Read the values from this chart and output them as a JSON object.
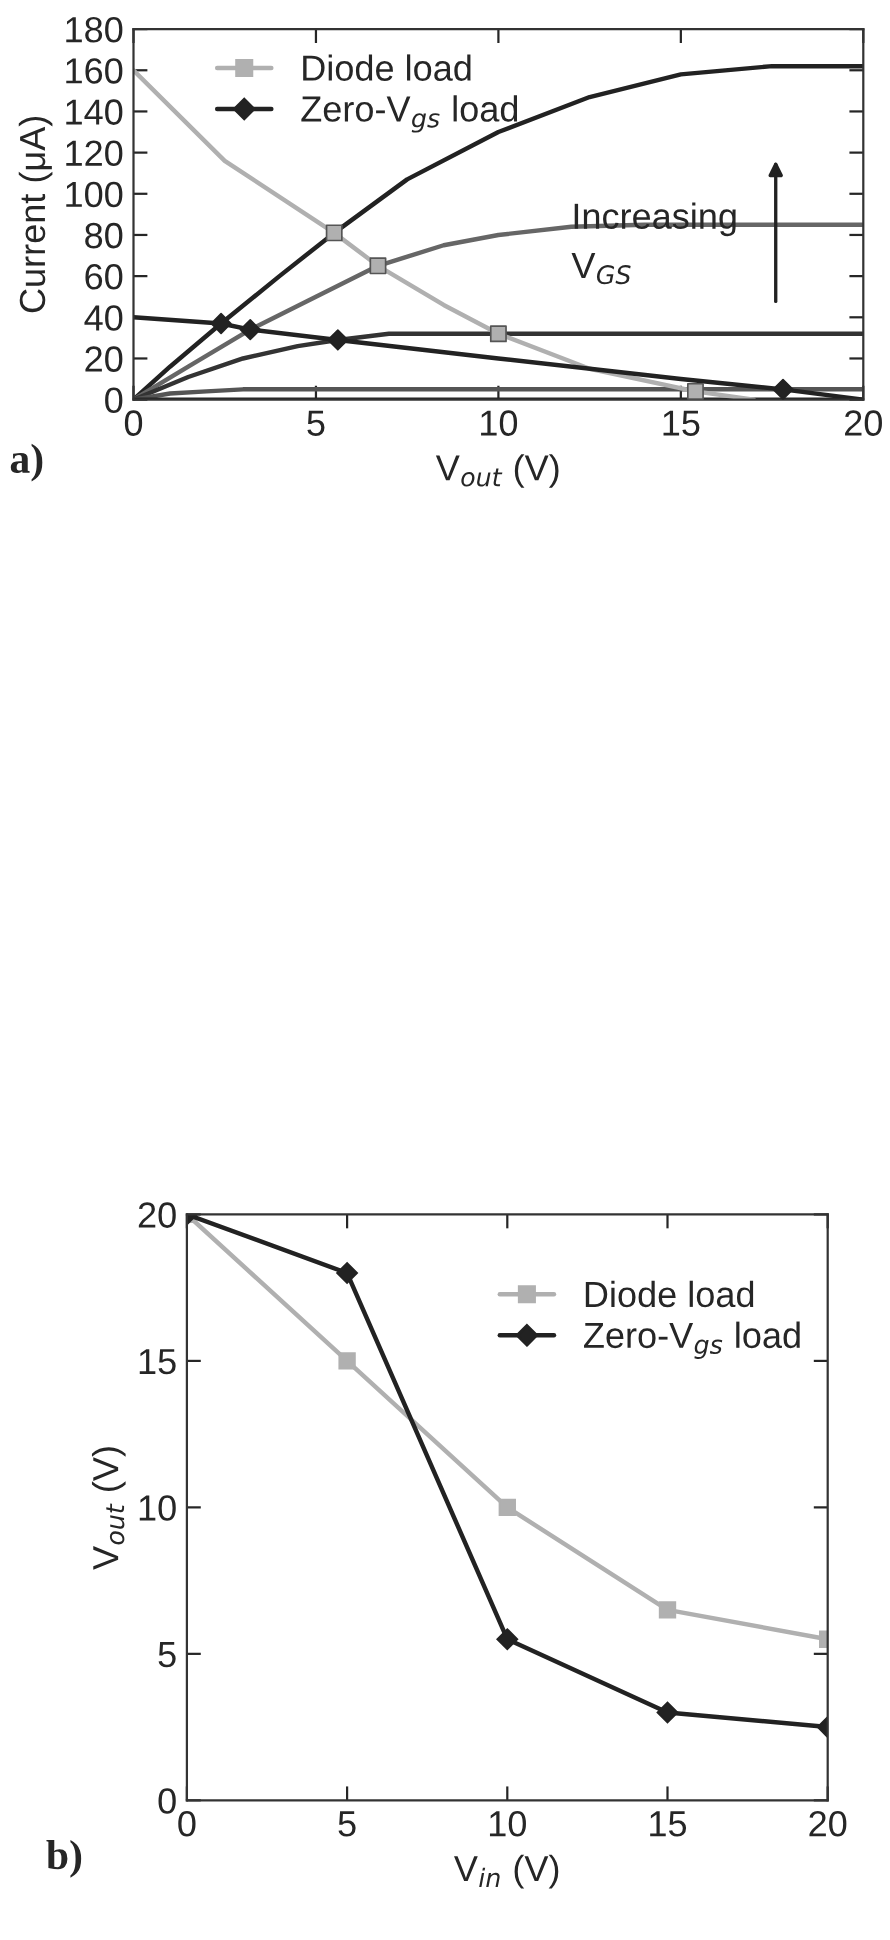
{
  "chart_data": [
    {
      "type": "line",
      "xlabel": "V$_{out}$ (V)",
      "ylabel": "Current (μA)",
      "xlim": [
        0,
        20
      ],
      "xticks": [
        0,
        5,
        10,
        15,
        20
      ],
      "ylim": [
        0,
        180
      ],
      "yticks": [
        0,
        20,
        40,
        60,
        80,
        100,
        120,
        140,
        160,
        180
      ],
      "grid": false,
      "legend": "top left",
      "annotations": [
        "a)",
        "Increasing\nV$_{GS}$"
      ],
      "series": [
        {
          "type": "line",
          "color": "#222222",
          "x": [
            0,
            1,
            2.4,
            4,
            5.5,
            7.5,
            10,
            12.5,
            15,
            17.5,
            20
          ],
          "values": [
            0,
            16,
            37,
            60,
            81,
            107,
            130,
            147,
            158,
            162,
            162
          ]
        },
        {
          "type": "line",
          "color": "#666666",
          "x": [
            0,
            1.5,
            3.2,
            5,
            6.7,
            8.5,
            10,
            12,
            14,
            20
          ],
          "values": [
            0,
            16,
            34,
            50,
            65,
            75,
            80,
            84,
            85,
            85
          ]
        },
        {
          "type": "line",
          "color": "#333333",
          "x": [
            0,
            1.5,
            3,
            4.5,
            5.6,
            7,
            8,
            20
          ],
          "values": [
            0,
            11,
            20,
            26,
            29,
            32,
            32,
            32
          ]
        },
        {
          "type": "line",
          "color": "#555555",
          "x": [
            0,
            1,
            2,
            3,
            20
          ],
          "values": [
            0,
            3,
            4,
            5,
            5
          ]
        },
        {
          "type": "line",
          "color": "#222222",
          "x": [
            0,
            20
          ],
          "values": [
            0,
            0
          ]
        },
        {
          "type": "line",
          "color": "#b0b0b0",
          "x": [
            0,
            2.5,
            5.5,
            6.7,
            8.5,
            10,
            12.5,
            15.4,
            17
          ],
          "values": [
            160,
            116,
            81,
            65,
            46,
            32,
            15,
            4,
            0
          ]
        },
        {
          "type": "line",
          "color": "#222222",
          "x": [
            0,
            2.4,
            3.2,
            5.6,
            10,
            15,
            17.8,
            20
          ],
          "values": [
            40,
            37,
            34,
            29,
            20,
            10,
            5,
            0
          ]
        },
        {
          "type": "scatter",
          "name": "Diode load",
          "color": "#b0b0b0",
          "marker": "square",
          "x": [
            5.5,
            6.7,
            10,
            15.4
          ],
          "values": [
            81,
            65,
            32,
            4
          ]
        },
        {
          "type": "scatter",
          "name": "Zero-V$_{gs}$ load",
          "color": "#222222",
          "marker": "diamond",
          "x": [
            2.4,
            3.2,
            5.6,
            17.8
          ],
          "values": [
            37,
            34,
            29,
            5
          ]
        }
      ]
    },
    {
      "type": "line",
      "xlabel": "V$_{in}$ (V)",
      "ylabel": "V$_{out}$ (V)",
      "xlim": [
        0,
        20
      ],
      "xticks": [
        0,
        5,
        10,
        15,
        20
      ],
      "ylim": [
        0,
        20
      ],
      "yticks": [
        0,
        5,
        10,
        15,
        20
      ],
      "grid": false,
      "legend": "top right",
      "annotations": [
        "b)"
      ],
      "series": [
        {
          "type": "line",
          "name": "Diode load",
          "color": "#b0b0b0",
          "marker": "square",
          "x": [
            0,
            5,
            10,
            15,
            20
          ],
          "values": [
            20,
            15,
            10,
            6.5,
            5.5
          ]
        },
        {
          "type": "line",
          "name": "Zero-V$_{gs}$ load",
          "color": "#222222",
          "marker": "diamond",
          "x": [
            0,
            5,
            10,
            15,
            20
          ],
          "values": [
            20,
            18,
            5.5,
            3,
            2.5
          ]
        }
      ]
    }
  ]
}
